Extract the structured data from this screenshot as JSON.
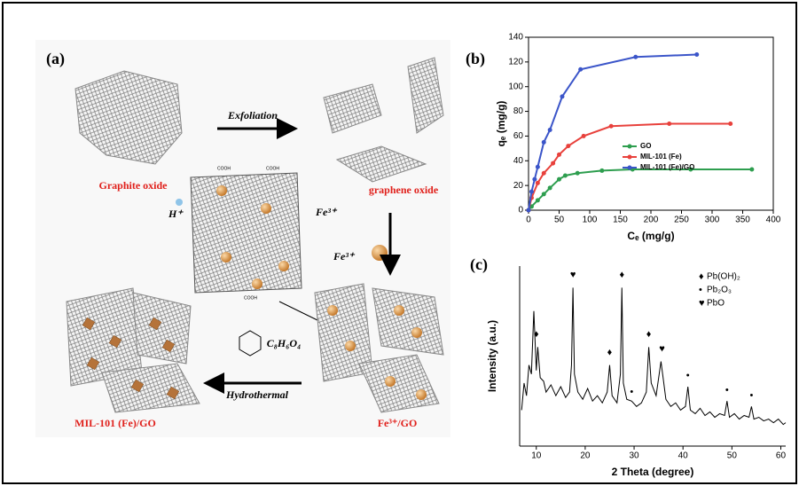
{
  "panel_a": {
    "label": "(a)",
    "exfoliation": "Exfoliation",
    "graphite_oxide": "Graphite oxide",
    "graphene_oxide": "graphene oxide",
    "proton": "H⁺",
    "iron_ion": "Fe³⁺",
    "linker": "C₈H₆O₄",
    "hydrothermal": "Hydrothermal",
    "product": "MIL-101 (Fe)/GO",
    "intermediate": "Fe³⁺/GO",
    "functional_group": "COOH"
  },
  "chart_data": [
    {
      "type": "line",
      "label": "(b)",
      "x_label": "Cₑ (mg/g)",
      "y_label": "qₑ (mg/g)",
      "xlim": [
        0,
        400
      ],
      "ylim": [
        0,
        140
      ],
      "xticks": [
        0,
        50,
        100,
        150,
        200,
        250,
        300,
        350,
        400
      ],
      "yticks": [
        0,
        20,
        40,
        60,
        80,
        100,
        120,
        140
      ],
      "frame": true,
      "series": [
        {
          "name": "GO",
          "color": "#2e9e4f",
          "x": [
            0,
            5,
            15,
            25,
            35,
            50,
            60,
            80,
            120,
            170,
            265,
            365
          ],
          "values": [
            0,
            3,
            8,
            13,
            18,
            25,
            28,
            30,
            32,
            33,
            33,
            33
          ]
        },
        {
          "name": "MIL-101 (Fe)",
          "color": "#e8413c",
          "x": [
            0,
            5,
            15,
            25,
            40,
            50,
            65,
            90,
            135,
            230,
            330
          ],
          "values": [
            0,
            10,
            22,
            30,
            38,
            45,
            52,
            60,
            68,
            70,
            70
          ]
        },
        {
          "name": "MIL-101 (Fe)/GO",
          "color": "#3b55c9",
          "x": [
            0,
            5,
            10,
            15,
            25,
            35,
            55,
            85,
            175,
            275
          ],
          "values": [
            0,
            15,
            25,
            35,
            55,
            65,
            92,
            114,
            124,
            126
          ]
        }
      ]
    },
    {
      "type": "line",
      "label": "(c)",
      "x_label": "2 Theta (degree)",
      "y_label": "Intensity (a.u.)",
      "xlim": [
        6.6,
        61
      ],
      "ylim": [
        0,
        100
      ],
      "xticks": [
        10,
        20,
        30,
        40,
        50,
        60
      ],
      "frame": false,
      "series": [
        {
          "color": "#000000",
          "x": [
            7,
            7.5,
            8,
            8.5,
            9,
            9.5,
            10,
            10.3,
            10.8,
            11.5,
            12,
            13,
            14,
            15,
            16,
            16.8,
            17.2,
            17.5,
            17.8,
            18.5,
            19.5,
            20.5,
            21.5,
            22.5,
            23.5,
            24.5,
            25,
            25.5,
            26.5,
            27.2,
            27.5,
            27.8,
            28.5,
            29.5,
            30.5,
            31.5,
            32.5,
            33,
            33.5,
            34.5,
            35.5,
            36.5,
            37.5,
            38.5,
            39.5,
            40.5,
            41,
            41.5,
            42.5,
            43.5,
            44.5,
            45.5,
            46.5,
            47.5,
            48.5,
            49,
            49.5,
            50.5,
            51.5,
            52.5,
            53.5,
            54,
            54.5,
            55.5,
            56.5,
            57.5,
            58.5,
            59.5,
            60.5,
            61
          ],
          "values": [
            20,
            35,
            28,
            45,
            40,
            75,
            42,
            55,
            38,
            36,
            30,
            34,
            28,
            33,
            27,
            30,
            45,
            88,
            40,
            30,
            26,
            32,
            25,
            28,
            24,
            30,
            45,
            28,
            24,
            40,
            88,
            35,
            26,
            25,
            22,
            24,
            30,
            55,
            35,
            28,
            47,
            26,
            22,
            24,
            20,
            22,
            33,
            20,
            18,
            21,
            17,
            19,
            16,
            18,
            17,
            25,
            16,
            18,
            15,
            17,
            16,
            22,
            15,
            16,
            14,
            15,
            13,
            15,
            12,
            13
          ]
        }
      ],
      "phase_legend": [
        {
          "symbol": "♦",
          "name": "Pb(OH)₂"
        },
        {
          "symbol": "•",
          "name": "Pb₂O₃"
        },
        {
          "symbol": "♥",
          "name": "PbO"
        }
      ],
      "peak_markers": [
        {
          "x": 10,
          "y": 62,
          "symbol": "♦"
        },
        {
          "x": 17.5,
          "y": 95,
          "symbol": "♥"
        },
        {
          "x": 25,
          "y": 52,
          "symbol": "♦"
        },
        {
          "x": 27.5,
          "y": 95,
          "symbol": "♦"
        },
        {
          "x": 29.5,
          "y": 30,
          "symbol": "•"
        },
        {
          "x": 33,
          "y": 62,
          "symbol": "♦"
        },
        {
          "x": 35.7,
          "y": 54,
          "symbol": "♥"
        },
        {
          "x": 41,
          "y": 39,
          "symbol": "•"
        },
        {
          "x": 49,
          "y": 31,
          "symbol": "•"
        },
        {
          "x": 54,
          "y": 28,
          "symbol": "•"
        }
      ]
    }
  ]
}
